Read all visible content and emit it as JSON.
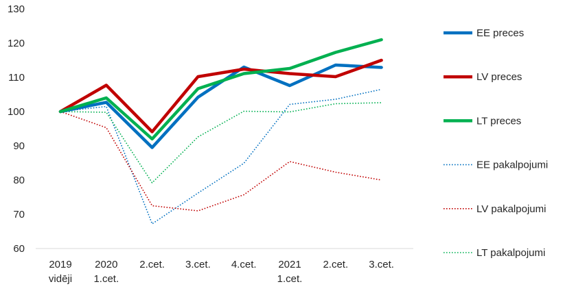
{
  "chart_data": {
    "type": "line",
    "title": "",
    "xlabel": "",
    "ylabel": "",
    "ylim": [
      60,
      130
    ],
    "yticks": [
      60,
      70,
      80,
      90,
      100,
      110,
      120,
      130
    ],
    "grid": false,
    "legend_position": "right",
    "categories": [
      [
        "2019",
        "vidēji"
      ],
      [
        "2020",
        "1.cet."
      ],
      [
        "2.cet."
      ],
      [
        "3.cet."
      ],
      [
        "4.cet."
      ],
      [
        "2021",
        "1.cet."
      ],
      [
        "2.cet."
      ],
      [
        "3.cet."
      ]
    ],
    "series": [
      {
        "name": "EE preces",
        "color": "#0070C0",
        "style": "solid",
        "width": 4.5,
        "values": [
          100,
          102.7,
          89.5,
          104.2,
          113.0,
          107.6,
          113.6,
          112.9
        ]
      },
      {
        "name": "LV preces",
        "color": "#C00000",
        "style": "solid",
        "width": 4.5,
        "values": [
          100,
          107.7,
          94.1,
          110.2,
          112.4,
          111.1,
          110.2,
          115.0
        ]
      },
      {
        "name": "LT preces",
        "color": "#00B050",
        "style": "solid",
        "width": 4.5,
        "values": [
          100,
          104.0,
          92.0,
          106.7,
          111.1,
          112.6,
          117.3,
          121.0
        ]
      },
      {
        "name": "EE pakalpojumi",
        "color": "#0070C0",
        "style": "dotted",
        "width": 1.6,
        "values": [
          100,
          101.5,
          67.2,
          76.2,
          84.9,
          102.1,
          103.6,
          106.5
        ]
      },
      {
        "name": "LV pakalpojumi",
        "color": "#C00000",
        "style": "dotted",
        "width": 1.6,
        "values": [
          100,
          95.3,
          72.5,
          71.0,
          75.7,
          85.4,
          82.3,
          80.0
        ]
      },
      {
        "name": "LT pakalpojumi",
        "color": "#00B050",
        "style": "dotted",
        "width": 1.6,
        "values": [
          100,
          99.8,
          79.2,
          92.6,
          100.1,
          99.9,
          102.3,
          102.6
        ]
      }
    ]
  }
}
